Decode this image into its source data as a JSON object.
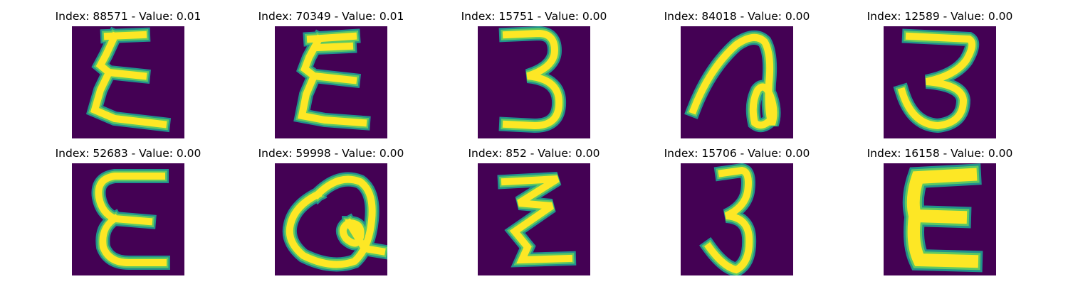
{
  "colors": {
    "background": "#440154",
    "stroke_outer": "#21918c",
    "stroke_mid": "#5ec962",
    "stroke_core": "#fde725"
  },
  "tiles": [
    {
      "title": "Index: 88571 - Value: 0.01",
      "glyph_icon": "handwritten-sigma-icon"
    },
    {
      "title": "Index: 70349 - Value: 0.01",
      "glyph_icon": "handwritten-sigma-icon"
    },
    {
      "title": "Index: 15751 - Value: 0.00",
      "glyph_icon": "handwritten-three-icon"
    },
    {
      "title": "Index: 84018 - Value: 0.00",
      "glyph_icon": "handwritten-loop-icon"
    },
    {
      "title": "Index: 12589 - Value: 0.00",
      "glyph_icon": "handwritten-three-icon"
    },
    {
      "title": "Index: 52683 - Value: 0.00",
      "glyph_icon": "handwritten-epsilon-icon"
    },
    {
      "title": "Index: 59998 - Value: 0.00",
      "glyph_icon": "handwritten-loop-icon"
    },
    {
      "title": "Index: 852 - Value: 0.00",
      "glyph_icon": "handwritten-zigzag-icon"
    },
    {
      "title": "Index: 15706 - Value: 0.00",
      "glyph_icon": "handwritten-three-icon"
    },
    {
      "title": "Index: 16158 - Value: 0.00",
      "glyph_icon": "handwritten-e-icon"
    }
  ]
}
